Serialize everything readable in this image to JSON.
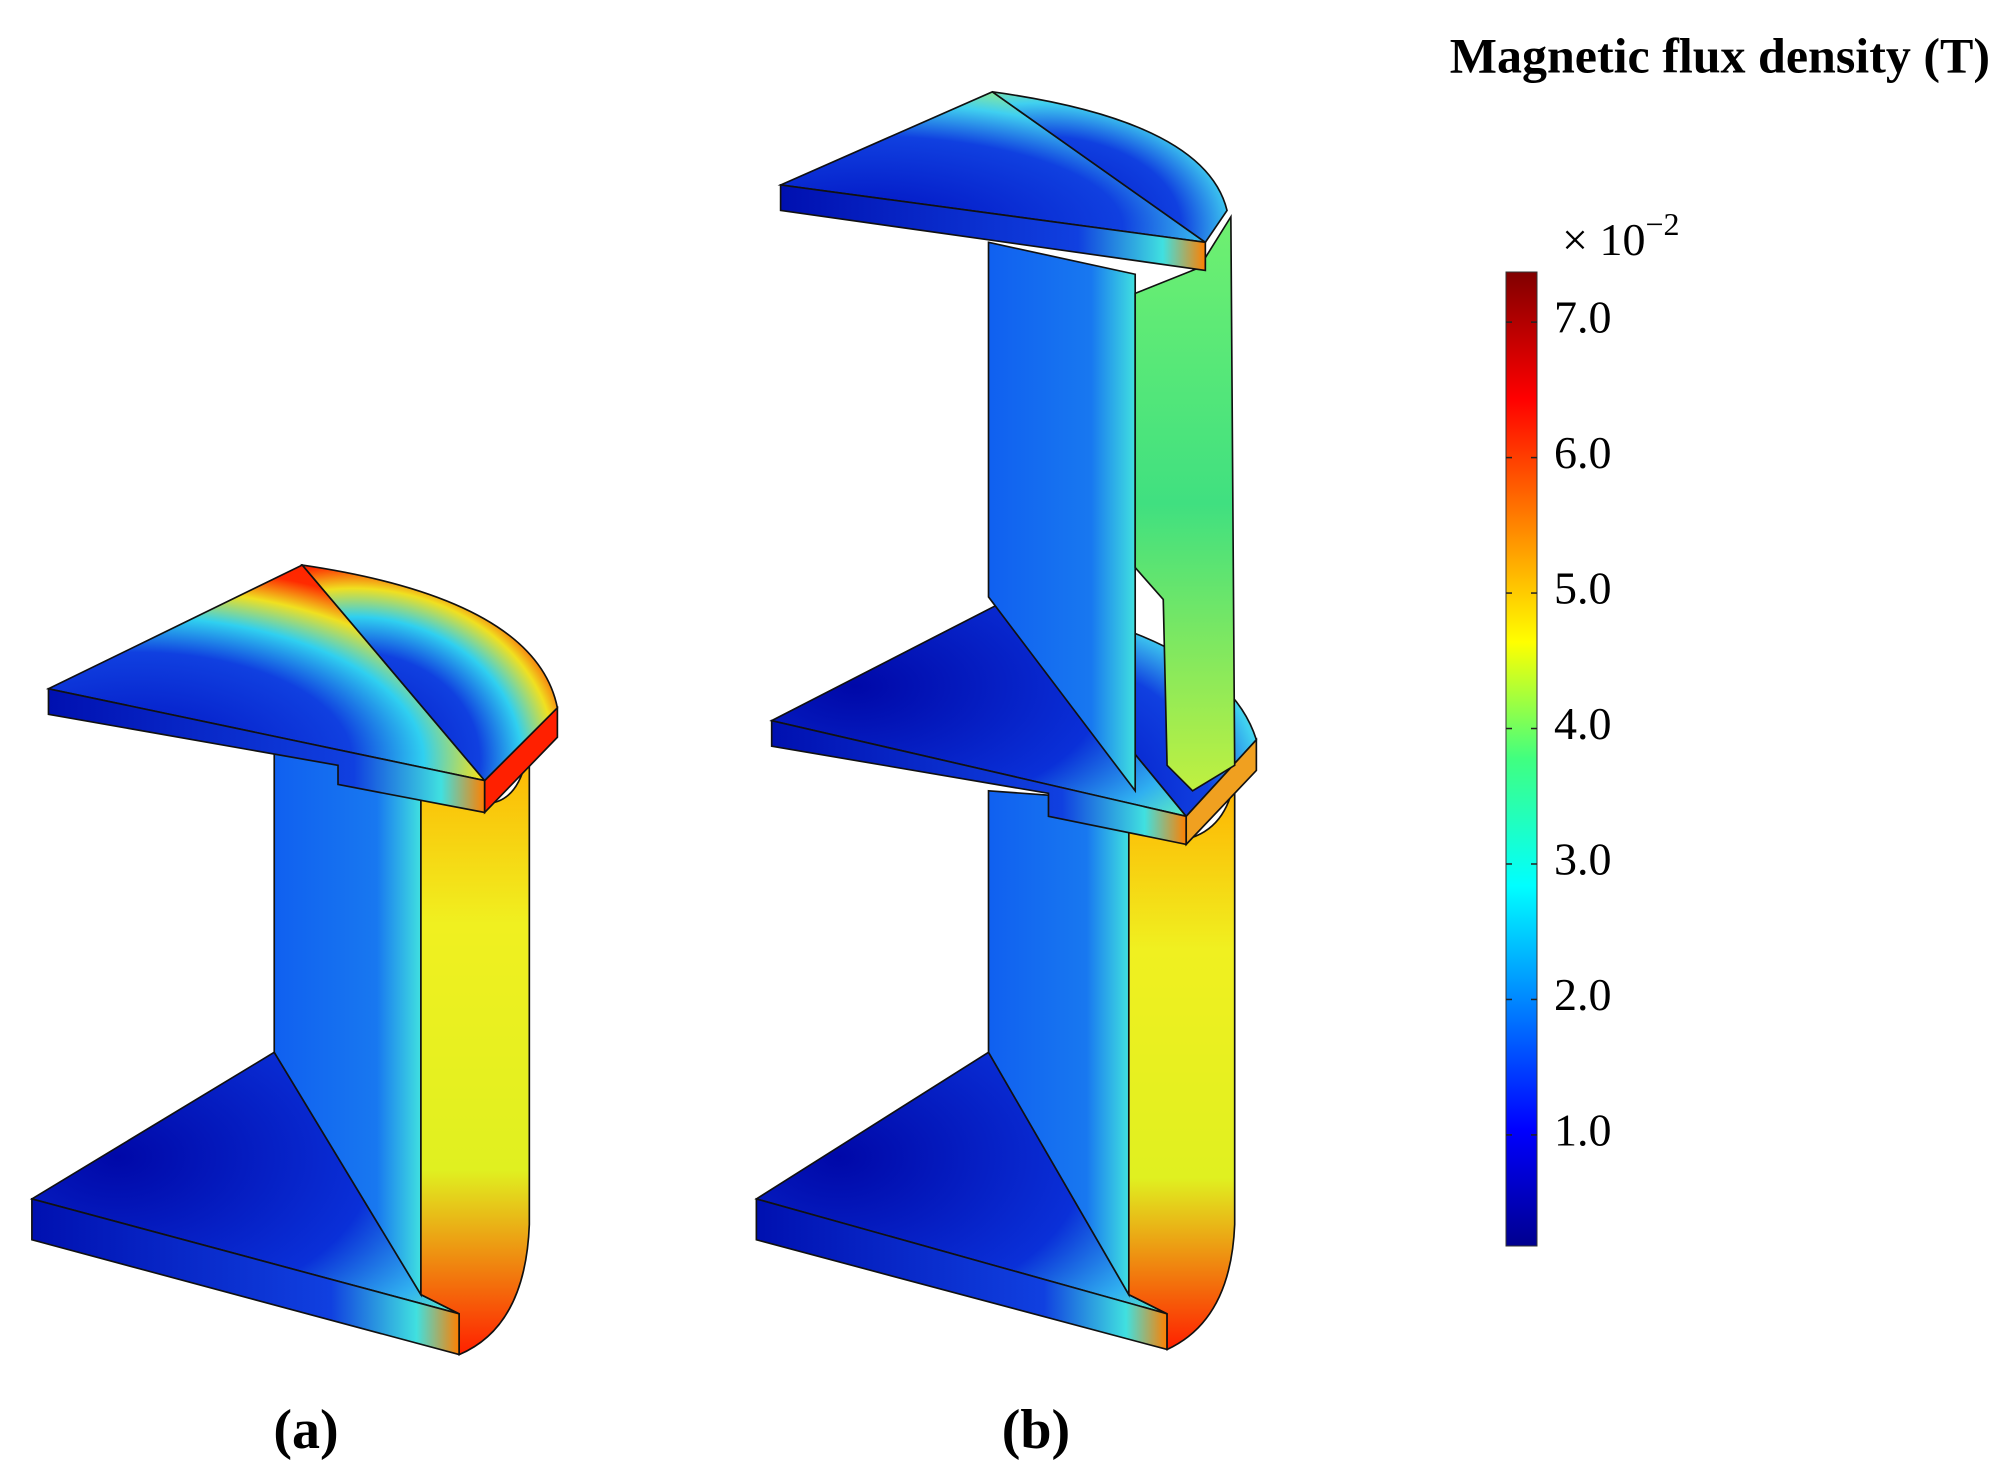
{
  "title": "Magnetic flux density (T)",
  "colorbar": {
    "multiplier_base": "× 10",
    "multiplier_exponent": "−2",
    "range": [
      0.18,
      7.37
    ],
    "ticks": [
      {
        "value": 1,
        "label": "1.0"
      },
      {
        "value": 2,
        "label": "2.0"
      },
      {
        "value": 3,
        "label": "3.0"
      },
      {
        "value": 4,
        "label": "4.0"
      },
      {
        "value": 5,
        "label": "5.0"
      },
      {
        "value": 6,
        "label": "6.0"
      },
      {
        "value": 7,
        "label": "7.0"
      }
    ]
  },
  "panels": [
    {
      "label": "(a)"
    },
    {
      "label": "(b)"
    }
  ]
}
